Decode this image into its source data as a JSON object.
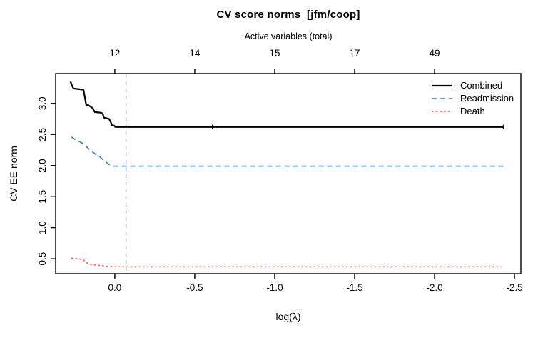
{
  "title": "CV score norms  [jfm/coop]",
  "top_axis": {
    "label": "Active variables (total)",
    "tick_positions": [
      0.0,
      -0.5,
      -1.0,
      -1.5,
      -2.0
    ],
    "tick_labels": [
      "12",
      "14",
      "15",
      "17",
      "49"
    ]
  },
  "x_axis": {
    "label": "log(λ)",
    "tick_positions": [
      0.0,
      -0.5,
      -1.0,
      -1.5,
      -2.0,
      -2.5
    ],
    "tick_labels": [
      "0.0",
      "-0.5",
      "-1.0",
      "-1.5",
      "-2.0",
      "-2.5"
    ],
    "reversed": true
  },
  "y_axis": {
    "label": "CV EE norm",
    "tick_positions": [
      0.5,
      1.0,
      1.5,
      2.0,
      2.5,
      3.0
    ],
    "tick_labels": [
      "0.5",
      "1.0",
      "1.5",
      "2.0",
      "2.5",
      "3.0"
    ]
  },
  "legend": {
    "entries": [
      {
        "label": "Combined",
        "color": "#000000",
        "dash": "solid"
      },
      {
        "label": "Readmission",
        "color": "#3d79b8",
        "dash": "dashed"
      },
      {
        "label": "Death",
        "color": "#f8463a",
        "dash": "dotted"
      }
    ]
  },
  "vline": {
    "x": -0.07,
    "color": "#999999",
    "dash": "dashed"
  },
  "colors": {
    "axis": "#000000",
    "background": "#ffffff"
  },
  "chart_data": {
    "type": "line",
    "title": "CV score norms  [jfm/coop]",
    "xlabel": "log(λ)",
    "ylabel": "CV EE norm",
    "xlim": [
      0.37,
      -2.54
    ],
    "ylim": [
      0.26,
      3.48
    ],
    "x_reversed": true,
    "grid": false,
    "legend_position": "top-right",
    "vline_x": -0.07,
    "series": [
      {
        "name": "Combined",
        "color": "#000000",
        "dash": "solid",
        "width": 2.2,
        "x": [
          0.277,
          0.268,
          0.259,
          0.196,
          0.179,
          0.165,
          0.147,
          0.138,
          0.125,
          0.085,
          0.076,
          0.067,
          0.036,
          0.027,
          0.018,
          0.004,
          -0.004,
          -2.43
        ],
        "y": [
          3.35,
          3.29,
          3.24,
          3.22,
          2.98,
          2.97,
          2.94,
          2.92,
          2.86,
          2.85,
          2.83,
          2.77,
          2.75,
          2.71,
          2.65,
          2.64,
          2.62,
          2.62
        ],
        "point_tick_x": [
          -0.61,
          -2.43
        ]
      },
      {
        "name": "Readmission",
        "color": "#3d79b8",
        "dash": "dashed",
        "width": 1.6,
        "x": [
          0.272,
          0.241,
          0.21,
          0.183,
          0.156,
          0.125,
          0.094,
          0.063,
          0.036,
          0.013,
          -2.43
        ],
        "y": [
          2.46,
          2.41,
          2.37,
          2.32,
          2.25,
          2.19,
          2.14,
          2.07,
          2.02,
          1.99,
          1.99
        ]
      },
      {
        "name": "Death",
        "color": "#f8463a",
        "dash": "dotted",
        "width": 1.5,
        "x": [
          0.272,
          0.237,
          0.201,
          0.179,
          0.156,
          0.125,
          0.071,
          0.013,
          -2.43
        ],
        "y": [
          0.51,
          0.5,
          0.49,
          0.44,
          0.41,
          0.4,
          0.385,
          0.37,
          0.37
        ]
      }
    ]
  }
}
